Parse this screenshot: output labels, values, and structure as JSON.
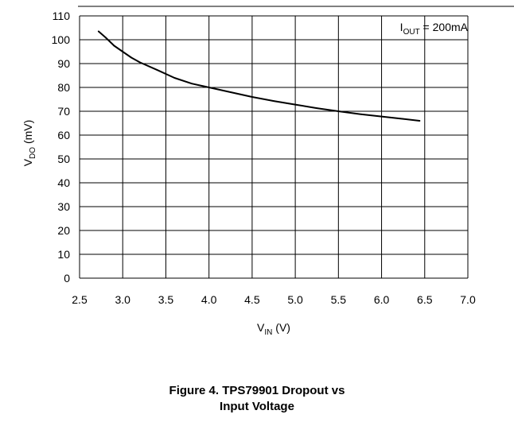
{
  "chart_data": {
    "type": "line",
    "x_label": {
      "main": "V",
      "sub": "IN",
      "suffix": " (V)"
    },
    "y_label": {
      "main": "V",
      "sub": "DO",
      "suffix": " (mV)"
    },
    "annotation": {
      "main": "I",
      "sub": "OUT",
      "suffix": " = 200mA",
      "position": "top-right"
    },
    "xlim": [
      2.5,
      7.0
    ],
    "ylim": [
      0,
      110
    ],
    "x_ticks": [
      "2.5",
      "3.0",
      "3.5",
      "4.0",
      "4.5",
      "5.0",
      "5.5",
      "6.0",
      "6.5",
      "7.0"
    ],
    "y_ticks": [
      "0",
      "10",
      "20",
      "30",
      "40",
      "50",
      "60",
      "70",
      "80",
      "90",
      "100",
      "110"
    ],
    "grid": true,
    "series": [
      {
        "x": [
          2.72,
          2.8,
          2.9,
          3.0,
          3.1,
          3.2,
          3.4,
          3.6,
          3.8,
          4.0,
          4.25,
          4.5,
          4.75,
          5.0,
          5.25,
          5.5,
          5.75,
          6.0,
          6.25,
          6.44
        ],
        "y": [
          103.5,
          101,
          97.5,
          95,
          92.5,
          90.5,
          87.3,
          84,
          81.6,
          80,
          78,
          76,
          74.3,
          72.8,
          71.3,
          70,
          68.8,
          67.8,
          66.8,
          66
        ],
        "color": "#000000"
      }
    ]
  },
  "caption": {
    "line1": "Figure 4. TPS79901 Dropout vs",
    "line2": "Input Voltage"
  }
}
